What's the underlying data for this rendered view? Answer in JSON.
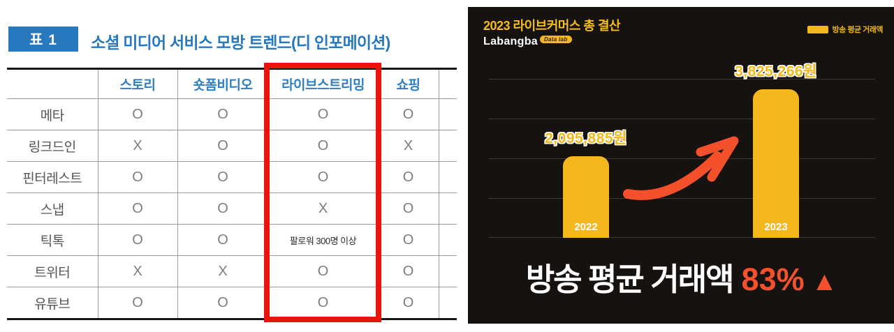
{
  "left_panel": {
    "tag_label": "표 1",
    "title": "소셜 미디어 서비스 모방 트렌드(디 인포메이션)",
    "highlighted_column": "라이브스트리밍",
    "colors": {
      "accent_blue": "#2878BE",
      "highlight_red": "#E9150B"
    }
  },
  "right_panel": {
    "title": "2023 라이브커머스 총 결산",
    "logo_text": "Labangba",
    "logo_badge": "Data lab",
    "legend": {
      "label": "방송 평균 거래액",
      "swatch_color": "#F4B81D"
    },
    "headline": {
      "text": "방송 평균 거래액",
      "percent": "83%",
      "arrow_symbol": "▲"
    },
    "colors": {
      "background": "#151210",
      "bar": "#F4B81D",
      "accent_red": "#F4502B",
      "grid": "#3b3833"
    }
  },
  "chart_data": [
    {
      "type": "table",
      "title": "소셜 미디어 서비스 모방 트렌드(디 인포메이션)",
      "columns": [
        "스토리",
        "숏폼비디오",
        "라이브스트리밍",
        "쇼핑"
      ],
      "rows": [
        {
          "label": "메타",
          "values": [
            "O",
            "O",
            "O",
            "O"
          ]
        },
        {
          "label": "링크드인",
          "values": [
            "X",
            "O",
            "O",
            "X"
          ]
        },
        {
          "label": "핀터레스트",
          "values": [
            "O",
            "O",
            "O",
            "O"
          ]
        },
        {
          "label": "스냅",
          "values": [
            "O",
            "O",
            "X",
            "O"
          ]
        },
        {
          "label": "틱톡",
          "values": [
            "O",
            "O",
            "팔로워 300명 이상",
            "O"
          ]
        },
        {
          "label": "트위터",
          "values": [
            "X",
            "X",
            "O",
            "O"
          ]
        },
        {
          "label": "유튜브",
          "values": [
            "O",
            "O",
            "O",
            "O"
          ]
        }
      ]
    },
    {
      "type": "bar",
      "title": "2023 라이브커머스 총 결산",
      "series_name": "방송 평균 거래액",
      "categories": [
        "2022",
        "2023"
      ],
      "values": [
        2095885,
        3825266
      ],
      "value_labels": [
        "2,095,885원",
        "3,825,266원"
      ],
      "unit": "원",
      "annotation": "방송 평균 거래액 83% ▲",
      "ylim": [
        0,
        4100000
      ],
      "grid": true,
      "legend_position": "top-right",
      "bar_color": "#F4B81D",
      "background": "#151210"
    }
  ]
}
